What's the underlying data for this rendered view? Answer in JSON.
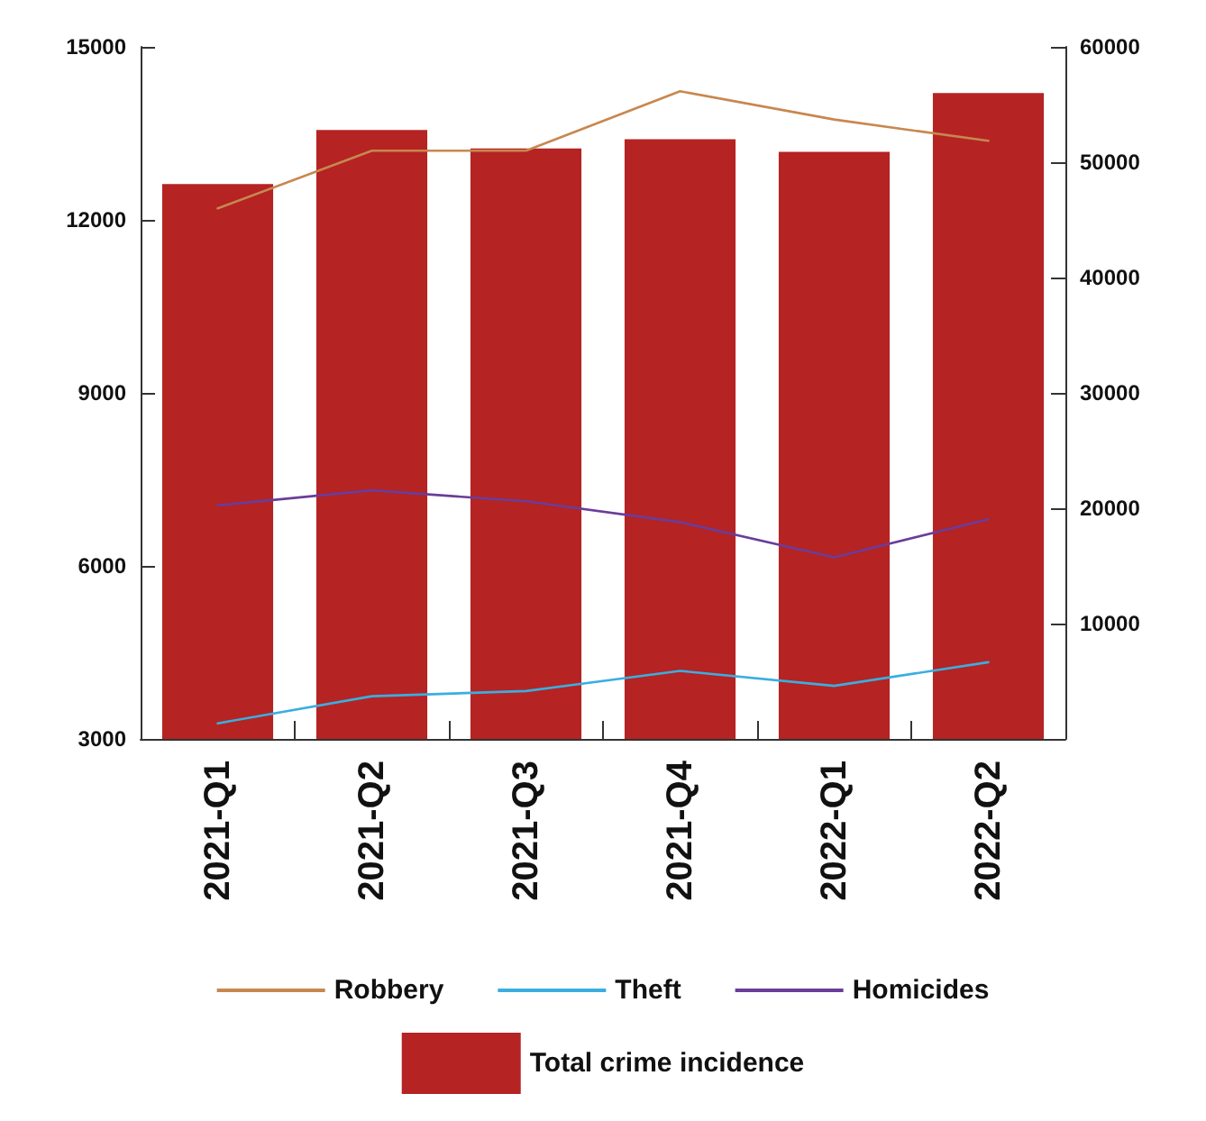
{
  "chart_data": {
    "type": "bar",
    "categories": [
      "2021-Q1",
      "2021-Q2",
      "2021-Q3",
      "2021-Q4",
      "2022-Q1",
      "2022-Q2"
    ],
    "series": [
      {
        "name": "Total crime incidence",
        "axis": "y2",
        "color": "#b52323",
        "values": [
          48100,
          52800,
          51200,
          52000,
          50900,
          56000
        ]
      },
      {
        "name": "Robbery",
        "type": "line",
        "color": "#c8874f",
        "values": [
          12200,
          13200,
          13200,
          14230,
          13740,
          13370
        ]
      },
      {
        "name": "Theft",
        "type": "line",
        "color": "#3aaee0",
        "values": [
          3270,
          3740,
          3830,
          4180,
          3920,
          4330
        ]
      },
      {
        "name": "Homicides",
        "type": "line",
        "color": "#6a3d9a",
        "values": [
          7050,
          7310,
          7120,
          6760,
          6150,
          6810
        ]
      }
    ],
    "ylim": [
      3000,
      15000
    ],
    "yticks": [
      3000,
      6000,
      9000,
      12000,
      15000
    ],
    "y2lim": [
      0,
      60000
    ],
    "y2ticks": [
      10000,
      20000,
      30000,
      40000,
      50000,
      60000
    ],
    "grid": false,
    "legend": "bottom",
    "marker": "none",
    "line_style": "solid"
  }
}
